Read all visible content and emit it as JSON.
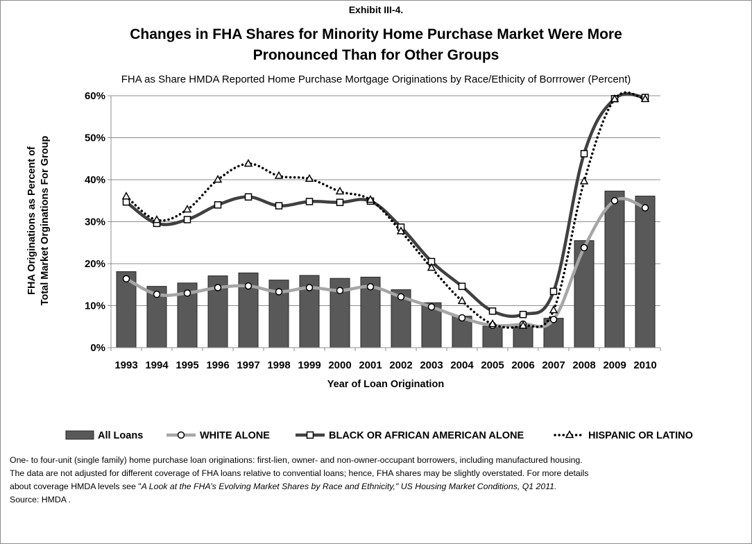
{
  "exhibit": "Exhibit III-4.",
  "title_line1": "Changes in FHA Shares for Minority Home Purchase Market Were More",
  "title_line2": "Pronounced Than for Other Groups",
  "subtitle": "FHA as Share HMDA Reported Home Purchase Mortgage Originations by Race/Ethicity of Borrrower (Percent)",
  "notes": {
    "line1": "One- to four-unit (single family) home purchase loan originations: first-lien, owner- and non-owner-occupant borrowers, including manufactured housing.",
    "line2": "The data are not adjusted for different coverage of FHA loans relative to convential loans; hence, FHA shares may be slightly overstated.  For more details",
    "line3_prefix": "about coverage HMDA levels see \"",
    "line3_italic": "A Look at the FHA’s Evolving Market Shares by Race and Ethnicity,\" US Housing Market Conditions, Q1 2011.",
    "line4": "Source:  HMDA ."
  },
  "chart_data": {
    "type": "bar",
    "title": "Changes in FHA Shares for Minority Home Purchase Market Were More Pronounced Than for Other Groups",
    "subtitle": "FHA as Share HMDA Reported Home Purchase Mortgage Originations by Race/Ethicity of Borrrower (Percent)",
    "xlabel": "Year of Loan Origination",
    "ylabel": [
      "FHA Originations as Percent of",
      "Total Market Orginations For Group"
    ],
    "ylim": [
      0,
      60
    ],
    "yticks": [
      0,
      10,
      20,
      30,
      40,
      50,
      60
    ],
    "ytick_labels": [
      "0%",
      "10%",
      "20%",
      "30%",
      "40%",
      "50%",
      "60%"
    ],
    "grid": true,
    "legend_position": "bottom",
    "categories": [
      "1993",
      "1994",
      "1995",
      "1996",
      "1997",
      "1998",
      "1999",
      "2000",
      "2001",
      "2002",
      "2003",
      "2004",
      "2005",
      "2006",
      "2007",
      "2008",
      "2009",
      "2010"
    ],
    "series": [
      {
        "name": "All Loans",
        "kind": "bar",
        "color": "#595959",
        "values": [
          18.1,
          14.6,
          15.4,
          17.1,
          17.8,
          16.1,
          17.2,
          16.5,
          16.8,
          13.8,
          10.7,
          7.5,
          5.1,
          5.4,
          7.0,
          25.5,
          37.3,
          36.1
        ]
      },
      {
        "name": "WHITE ALONE",
        "kind": "line",
        "marker": "circle",
        "color": "#a6a6a6",
        "values": [
          16.4,
          12.7,
          13.0,
          14.3,
          14.7,
          13.3,
          14.3,
          13.6,
          14.5,
          12.1,
          9.7,
          7.1,
          5.3,
          5.6,
          6.7,
          23.8,
          35.0,
          33.3
        ]
      },
      {
        "name": "BLACK OR AFRICAN AMERICAN ALONE",
        "kind": "line",
        "marker": "square",
        "color": "#404040",
        "values": [
          34.7,
          29.6,
          30.5,
          34.0,
          35.9,
          33.8,
          34.8,
          34.6,
          34.9,
          28.7,
          20.5,
          14.6,
          8.7,
          7.9,
          13.4,
          46.2,
          59.3,
          59.6
        ]
      },
      {
        "name": "HISPANIC OR LATINO",
        "kind": "line",
        "marker": "triangle",
        "color": "#000000",
        "dash": "dotted",
        "values": [
          36.0,
          30.4,
          32.9,
          40.0,
          43.8,
          40.9,
          40.2,
          37.2,
          35.2,
          27.7,
          19.0,
          11.1,
          5.6,
          5.2,
          8.9,
          39.6,
          59.2,
          59.2
        ]
      }
    ]
  }
}
